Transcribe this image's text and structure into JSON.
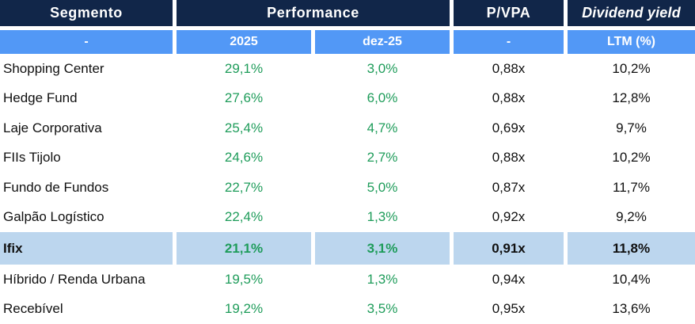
{
  "colors": {
    "header_bg": "#112649",
    "subheader_bg": "#5298F6",
    "highlight_bg": "#BCD6EE",
    "positive_green": "#1E9C5A"
  },
  "table": {
    "header": {
      "segmento": "Segmento",
      "performance": "Performance",
      "pvpa": "P/VPA",
      "dividend_yield": "Dividend yield"
    },
    "subheader": {
      "segmento": "-",
      "perf_2025": "2025",
      "perf_dez25": "dez-25",
      "pvpa": "-",
      "ltm": "LTM (%)"
    },
    "rows": [
      {
        "segmento": "Shopping Center",
        "perf_2025": "29,1%",
        "perf_dez25": "3,0%",
        "pvpa": "0,88x",
        "ltm": "10,2%",
        "highlight": false
      },
      {
        "segmento": "Hedge Fund",
        "perf_2025": "27,6%",
        "perf_dez25": "6,0%",
        "pvpa": "0,88x",
        "ltm": "12,8%",
        "highlight": false
      },
      {
        "segmento": "Laje Corporativa",
        "perf_2025": "25,4%",
        "perf_dez25": "4,7%",
        "pvpa": "0,69x",
        "ltm": "9,7%",
        "highlight": false
      },
      {
        "segmento": "FIIs Tijolo",
        "perf_2025": "24,6%",
        "perf_dez25": "2,7%",
        "pvpa": "0,88x",
        "ltm": "10,2%",
        "highlight": false
      },
      {
        "segmento": "Fundo de Fundos",
        "perf_2025": "22,7%",
        "perf_dez25": "5,0%",
        "pvpa": "0,87x",
        "ltm": "11,7%",
        "highlight": false
      },
      {
        "segmento": "Galpão Logístico",
        "perf_2025": "22,4%",
        "perf_dez25": "1,3%",
        "pvpa": "0,92x",
        "ltm": "9,2%",
        "highlight": false
      },
      {
        "segmento": "Ifix",
        "perf_2025": "21,1%",
        "perf_dez25": "3,1%",
        "pvpa": "0,91x",
        "ltm": "11,8%",
        "highlight": true
      },
      {
        "segmento": "Híbrido / Renda Urbana",
        "perf_2025": "19,5%",
        "perf_dez25": "1,3%",
        "pvpa": "0,94x",
        "ltm": "10,4%",
        "highlight": false
      },
      {
        "segmento": "Recebível",
        "perf_2025": "19,2%",
        "perf_dez25": "3,5%",
        "pvpa": "0,95x",
        "ltm": "13,6%",
        "highlight": false
      }
    ]
  },
  "chart_data": {
    "type": "table",
    "title": "",
    "column_groups": [
      "Segmento",
      "Performance",
      "Performance",
      "P/VPA",
      "Dividend yield"
    ],
    "columns": [
      "Segmento",
      "Performance 2025",
      "Performance dez-25",
      "P/VPA",
      "Dividend yield LTM (%)"
    ],
    "rows": [
      [
        "Shopping Center",
        "29,1%",
        "3,0%",
        "0,88x",
        "10,2%"
      ],
      [
        "Hedge Fund",
        "27,6%",
        "6,0%",
        "0,88x",
        "12,8%"
      ],
      [
        "Laje Corporativa",
        "25,4%",
        "4,7%",
        "0,69x",
        "9,7%"
      ],
      [
        "FIIs Tijolo",
        "24,6%",
        "2,7%",
        "0,88x",
        "10,2%"
      ],
      [
        "Fundo de Fundos",
        "22,7%",
        "5,0%",
        "0,87x",
        "11,7%"
      ],
      [
        "Galpão Logístico",
        "22,4%",
        "1,3%",
        "0,92x",
        "9,2%"
      ],
      [
        "Ifix",
        "21,1%",
        "3,1%",
        "0,91x",
        "11,8%"
      ],
      [
        "Híbrido / Renda Urbana",
        "19,5%",
        "1,3%",
        "0,94x",
        "10,4%"
      ],
      [
        "Recebível",
        "19,2%",
        "3,5%",
        "0,95x",
        "13,6%"
      ]
    ],
    "numeric": {
      "performance_2025_pct": [
        29.1,
        27.6,
        25.4,
        24.6,
        22.7,
        22.4,
        21.1,
        19.5,
        19.2
      ],
      "performance_dez25_pct": [
        3.0,
        6.0,
        4.7,
        2.7,
        5.0,
        1.3,
        3.1,
        1.3,
        3.5
      ],
      "pvpa_x": [
        0.88,
        0.88,
        0.69,
        0.88,
        0.87,
        0.92,
        0.91,
        0.94,
        0.95
      ],
      "dividend_yield_ltm_pct": [
        10.2,
        12.8,
        9.7,
        10.2,
        11.7,
        9.2,
        11.8,
        10.4,
        13.6
      ]
    },
    "highlighted_row": "Ifix",
    "notes": "Performance values rendered in green; Ifix benchmark row highlighted light blue and bold"
  }
}
